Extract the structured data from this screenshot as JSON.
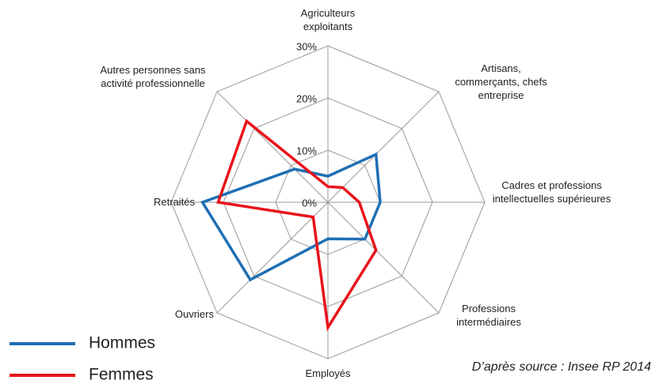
{
  "chart_data": {
    "type": "radar",
    "categories": [
      "Agriculteurs exploitants",
      "Artisans, commerçants, chefs entreprise",
      "Cadres et professions intellectuelles supérieures",
      "Professions intermédiaires",
      "Employés",
      "Ouvriers",
      "Retraités",
      "Autres personnes sans activité professionnelle"
    ],
    "series": [
      {
        "name": "Hommes",
        "color": "#1f6fb4",
        "values": [
          5,
          13,
          10,
          10,
          7,
          21,
          24,
          9
        ]
      },
      {
        "name": "Femmes",
        "color": "#e8141c",
        "values": [
          3,
          4,
          6,
          13,
          24,
          4,
          21,
          22
        ]
      }
    ],
    "ylim": [
      0,
      30
    ],
    "yticks": [
      {
        "value": 0,
        "label": "0%"
      },
      {
        "value": 10,
        "label": "10%"
      },
      {
        "value": 20,
        "label": "20%"
      },
      {
        "value": 30,
        "label": "30%"
      }
    ],
    "grid": true,
    "legend": "bottom-left",
    "annotation": "D’après source : Insee RP 2014"
  }
}
